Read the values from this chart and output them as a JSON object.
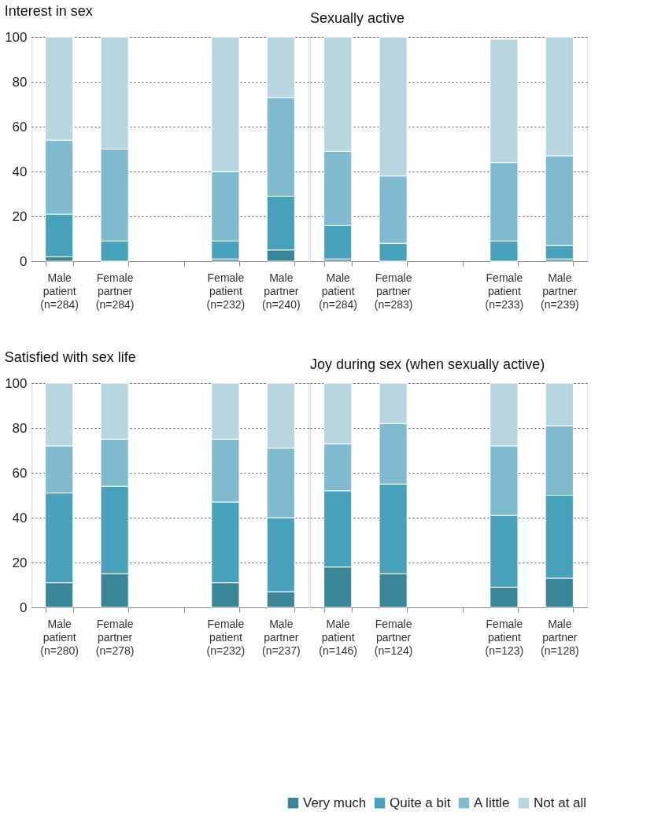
{
  "chart_data": [
    {
      "type": "bar",
      "title": "Interest in sex",
      "categories": [
        "Male patient (n=284)",
        "Female partner (n=284)",
        null,
        "Female patient (n=232)",
        "Male partner (n=240)"
      ],
      "stacked": true,
      "ylim": [
        0,
        100
      ],
      "yticks": [
        0,
        20,
        40,
        60,
        80,
        100
      ],
      "grid": "y",
      "legend": "bottom right",
      "series": [
        {
          "name": "Very much",
          "color": "#3a8699",
          "values": [
            2,
            0,
            null,
            1,
            5
          ]
        },
        {
          "name": "Quite a bit",
          "color": "#48a1ba",
          "values": [
            19,
            9,
            null,
            8,
            24
          ]
        },
        {
          "name": "A little",
          "color": "#7fbacf",
          "values": [
            33,
            41,
            null,
            31,
            44
          ]
        },
        {
          "name": "Not at all",
          "color": "#b8d6e0",
          "values": [
            46,
            50,
            null,
            60,
            27
          ]
        }
      ]
    },
    {
      "type": "bar",
      "title": "Sexually active",
      "categories": [
        "Male patient (n=284)",
        "Female partner (n=283)",
        null,
        "Female patient (n=233)",
        "Male partner (n=239)"
      ],
      "stacked": true,
      "ylim": [
        0,
        100
      ],
      "yticks": [
        0,
        20,
        40,
        60,
        80,
        100
      ],
      "grid": "y",
      "tick_labels": "x",
      "legend": "bottom right",
      "series": [
        {
          "name": "Very much",
          "color": "#3a8699",
          "values": [
            1,
            0,
            null,
            0,
            1
          ]
        },
        {
          "name": "Quite a bit",
          "color": "#48a1ba",
          "values": [
            15,
            8,
            null,
            9,
            6
          ]
        },
        {
          "name": "A little",
          "color": "#7fbacf",
          "values": [
            33,
            30,
            null,
            35,
            40
          ]
        },
        {
          "name": "Not at all",
          "color": "#b8d6e0",
          "values": [
            51,
            62,
            null,
            55,
            53
          ]
        }
      ]
    },
    {
      "type": "bar",
      "title": "Satisfied with sex life",
      "categories": [
        "Male patient (n=280)",
        "Female partner (n=278)",
        null,
        "Female patient (n=232)",
        "Male partner (n=237)"
      ],
      "stacked": true,
      "ylim": [
        0,
        100
      ],
      "yticks": [
        0,
        20,
        40,
        60,
        80,
        100
      ],
      "grid": "y",
      "legend": "bottom right",
      "series": [
        {
          "name": "Very much",
          "color": "#3a8699",
          "values": [
            11,
            15,
            null,
            11,
            7
          ]
        },
        {
          "name": "Quite a bit",
          "color": "#48a1ba",
          "values": [
            40,
            39,
            null,
            36,
            33
          ]
        },
        {
          "name": "A little",
          "color": "#7fbacf",
          "values": [
            21,
            21,
            null,
            28,
            31
          ]
        },
        {
          "name": "Not at all",
          "color": "#b8d6e0",
          "values": [
            28,
            25,
            null,
            25,
            29
          ]
        }
      ]
    },
    {
      "type": "bar",
      "title": "Joy during sex (when sexually active)",
      "categories": [
        "Male patient (n=146)",
        "Female partner (n=124)",
        null,
        "Female patient (n=123)",
        "Male partner (n=128)"
      ],
      "stacked": true,
      "ylim": [
        0,
        100
      ],
      "yticks": [
        0,
        20,
        40,
        60,
        80,
        100
      ],
      "grid": "y",
      "tick_labels": "x",
      "legend": "bottom right",
      "series": [
        {
          "name": "Very much",
          "color": "#3a8699",
          "values": [
            18,
            15,
            null,
            9,
            13
          ]
        },
        {
          "name": "Quite a bit",
          "color": "#48a1ba",
          "values": [
            34,
            40,
            null,
            32,
            37
          ]
        },
        {
          "name": "A little",
          "color": "#7fbacf",
          "values": [
            21,
            27,
            null,
            31,
            31
          ]
        },
        {
          "name": "Not at all",
          "color": "#b8d6e0",
          "values": [
            27,
            18,
            null,
            28,
            19
          ]
        }
      ]
    }
  ]
}
